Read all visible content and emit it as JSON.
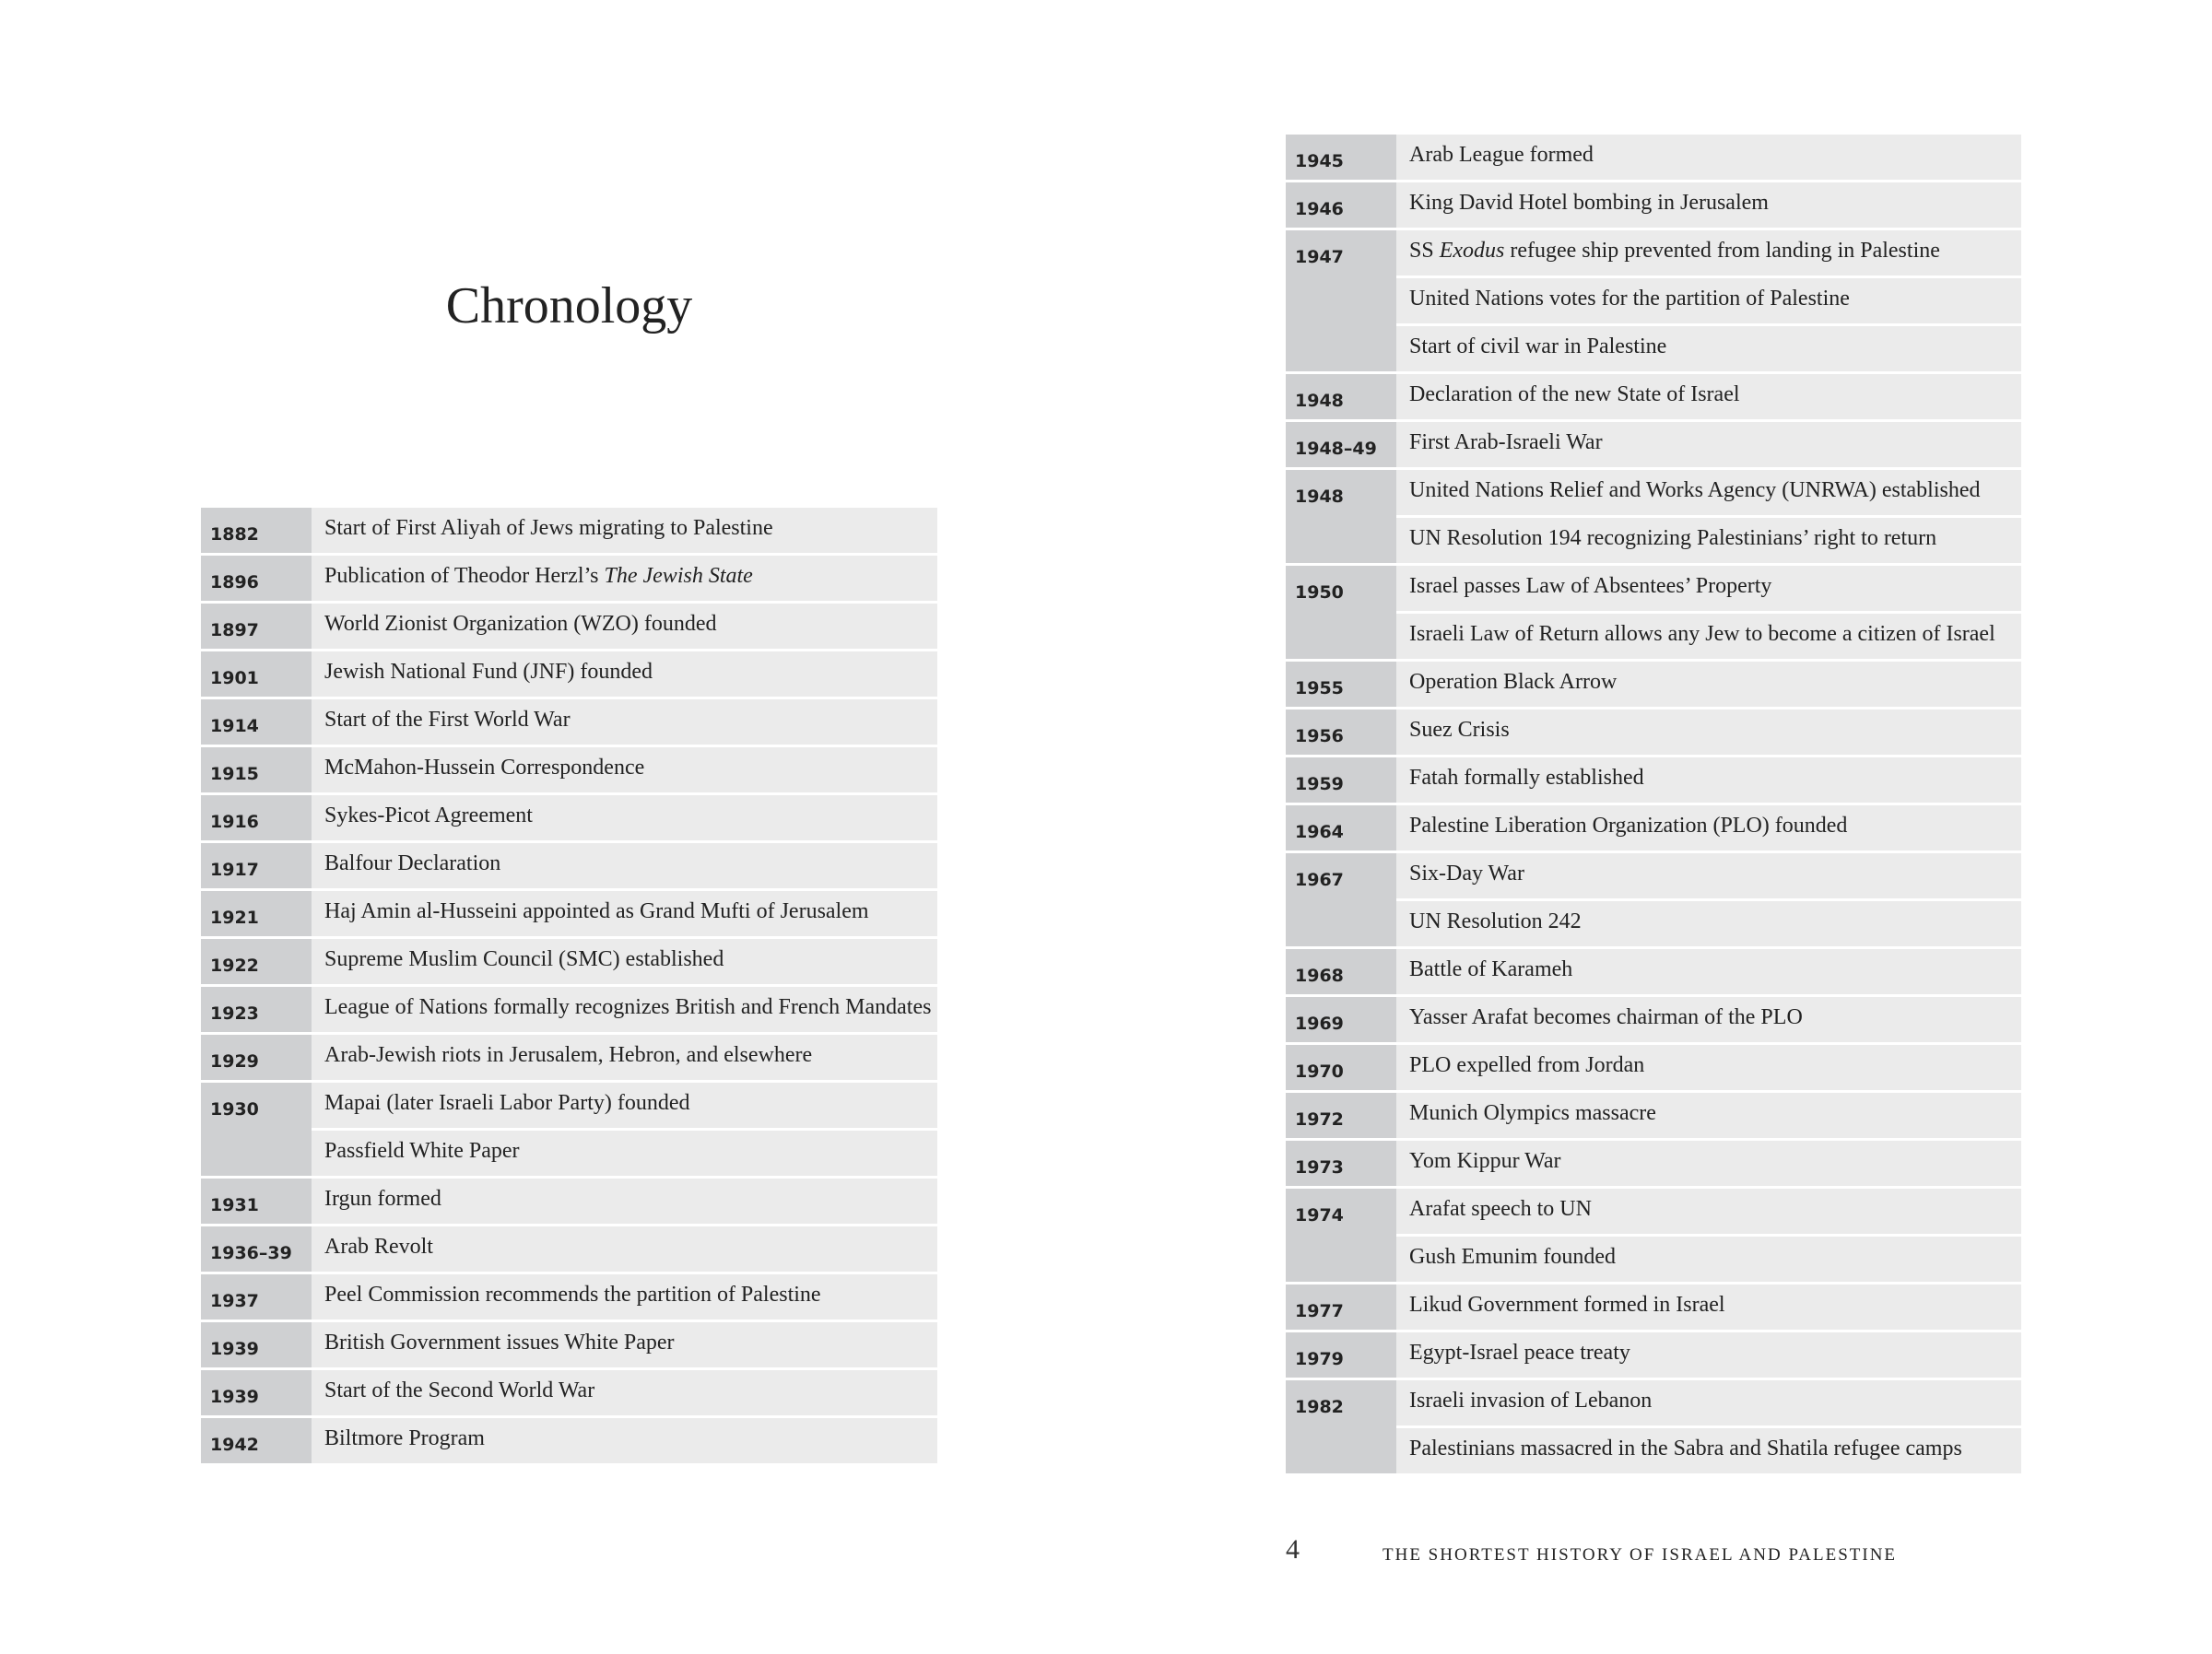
{
  "title": "Chronology",
  "left": [
    {
      "year": "1882",
      "events": [
        "Start of First Aliyah of Jews migrating to Palestine"
      ]
    },
    {
      "year": "1896",
      "events": [
        "Publication of Theodor Herzl’s The Jewish State"
      ],
      "italic": "The Jewish State"
    },
    {
      "year": "1897",
      "events": [
        "World Zionist Organization (WZO) founded"
      ]
    },
    {
      "year": "1901",
      "events": [
        "Jewish National Fund (JNF) founded"
      ]
    },
    {
      "year": "1914",
      "events": [
        "Start of the First World War"
      ]
    },
    {
      "year": "1915",
      "events": [
        "McMahon-Hussein Correspondence"
      ]
    },
    {
      "year": "1916",
      "events": [
        "Sykes-Picot Agreement"
      ]
    },
    {
      "year": "1917",
      "events": [
        "Balfour Declaration"
      ]
    },
    {
      "year": "1921",
      "events": [
        "Haj Amin al-Husseini appointed as Grand Mufti of Jerusalem"
      ]
    },
    {
      "year": "1922",
      "events": [
        "Supreme Muslim Council (SMC) established"
      ]
    },
    {
      "year": "1923",
      "events": [
        "League of Nations formally recognizes British and French Mandates"
      ]
    },
    {
      "year": "1929",
      "events": [
        "Arab-Jewish riots in Jerusalem, Hebron, and elsewhere"
      ]
    },
    {
      "year": "1930",
      "events": [
        "Mapai (later Israeli Labor Party) founded",
        "Passfield White Paper"
      ]
    },
    {
      "year": "1931",
      "events": [
        "Irgun formed"
      ]
    },
    {
      "year": "1936–39",
      "events": [
        "Arab Revolt"
      ]
    },
    {
      "year": "1937",
      "events": [
        "Peel Commission recommends the partition of Palestine"
      ]
    },
    {
      "year": "1939",
      "events": [
        "British Government issues White Paper"
      ]
    },
    {
      "year": "1939",
      "events": [
        "Start of the Second World War"
      ]
    },
    {
      "year": "1942",
      "events": [
        "Biltmore Program"
      ]
    }
  ],
  "right": [
    {
      "year": "1945",
      "events": [
        "Arab League formed"
      ]
    },
    {
      "year": "1946",
      "events": [
        "King David Hotel bombing in Jerusalem"
      ]
    },
    {
      "year": "1947",
      "events": [
        "SS Exodus refugee ship prevented from landing in Palestine",
        "United Nations votes for the partition of Palestine",
        "Start of civil war in Palestine"
      ],
      "italic": "Exodus"
    },
    {
      "year": "1948",
      "events": [
        "Declaration of the new State of Israel"
      ]
    },
    {
      "year": "1948–49",
      "events": [
        "First Arab-Israeli War"
      ]
    },
    {
      "year": "1948",
      "events": [
        "United Nations Relief and Works Agency (UNRWA) established",
        "UN Resolution 194 recognizing Palestinians’ right to return"
      ]
    },
    {
      "year": "1950",
      "events": [
        "Israel passes Law of Absentees’ Property",
        "Israeli Law of Return allows any Jew to become a citizen of Israel"
      ]
    },
    {
      "year": "1955",
      "events": [
        "Operation Black Arrow"
      ]
    },
    {
      "year": "1956",
      "events": [
        "Suez Crisis"
      ]
    },
    {
      "year": "1959",
      "events": [
        "Fatah formally established"
      ]
    },
    {
      "year": "1964",
      "events": [
        "Palestine Liberation Organization (PLO) founded"
      ]
    },
    {
      "year": "1967",
      "events": [
        "Six-Day War",
        "UN Resolution 242"
      ]
    },
    {
      "year": "1968",
      "events": [
        "Battle of Karameh"
      ]
    },
    {
      "year": "1969",
      "events": [
        "Yasser Arafat becomes chairman of the PLO"
      ]
    },
    {
      "year": "1970",
      "events": [
        "PLO expelled from Jordan"
      ]
    },
    {
      "year": "1972",
      "events": [
        "Munich Olympics massacre"
      ]
    },
    {
      "year": "1973",
      "events": [
        "Yom Kippur War"
      ]
    },
    {
      "year": "1974",
      "events": [
        "Arafat speech to UN",
        "Gush Emunim founded"
      ]
    },
    {
      "year": "1977",
      "events": [
        "Likud Government formed in Israel"
      ]
    },
    {
      "year": "1979",
      "events": [
        "Egypt-Israel peace treaty"
      ]
    },
    {
      "year": "1982",
      "events": [
        "Israeli invasion of Lebanon",
        "Palestinians massacred in the Sabra and Shatila refugee camps"
      ]
    }
  ],
  "footer": {
    "page_number": "4",
    "running_title": "THE SHORTEST HISTORY OF ISRAEL AND PALESTINE"
  },
  "colors": {
    "year_cell": "#cfd0d2",
    "event_cell": "#ebebeb"
  }
}
